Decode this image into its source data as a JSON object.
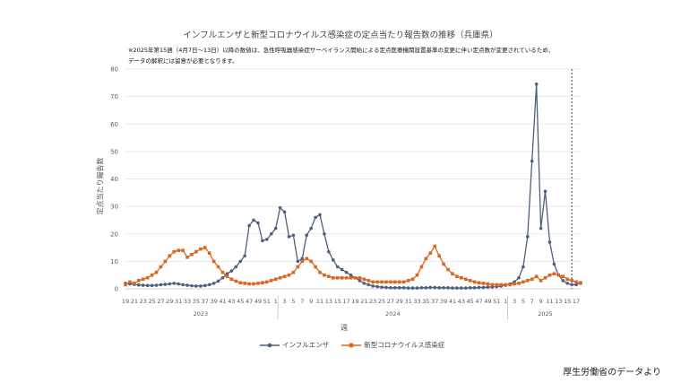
{
  "title": "インフルエンザと新型コロナウイルス感染症の定点当たり報告数の推移（兵庫県）",
  "note_line1": "※2025年第15週（4月7日～13日）以降の数値は、急性呼吸器感染症サーベイランス開始による定点医療機関設置基準の変更に伴い定点数が変更されているため、",
  "note_line2": "データの解釈には留意が必要となります。",
  "credit": "厚生労働省のデータより",
  "colors": {
    "influenza": "#4c5f7f",
    "covid": "#d9671f",
    "grid": "#e3e3e3",
    "axis": "#bfbfbf",
    "text": "#595959"
  },
  "chart_data": {
    "type": "line",
    "title": "インフルエンザと新型コロナウイルス感染症の定点当たり報告数の推移（兵庫県）",
    "xlabel": "週",
    "ylabel": "定点当たり報告数",
    "ylim": [
      0,
      80
    ],
    "yticks": [
      0,
      10,
      20,
      30,
      40,
      50,
      60,
      70,
      80
    ],
    "grid": true,
    "legend_position": "bottom",
    "x_start": "2023年 第19週",
    "year_labels": [
      {
        "label": "2023",
        "from_index": 0,
        "to_index": 34
      },
      {
        "label": "2024",
        "from_index": 35,
        "to_index": 86
      },
      {
        "label": "2025",
        "from_index": 87,
        "to_index": 103
      }
    ],
    "x_tick_labels": [
      "19",
      "21",
      "23",
      "25",
      "27",
      "29",
      "31",
      "33",
      "35",
      "37",
      "39",
      "41",
      "43",
      "45",
      "47",
      "49",
      "51",
      "1",
      "3",
      "5",
      "7",
      "9",
      "11",
      "13",
      "15",
      "17",
      "19",
      "21",
      "23",
      "25",
      "27",
      "29",
      "31",
      "33",
      "35",
      "37",
      "39",
      "41",
      "43",
      "45",
      "47",
      "49",
      "51",
      "1",
      "3",
      "5",
      "7",
      "9",
      "11",
      "13",
      "15",
      "17"
    ],
    "annotation": "2025年第15週 区切り線",
    "marker_line_index": 101,
    "series": [
      {
        "name": "インフルエンザ",
        "marker": "circle",
        "values": [
          2.0,
          1.8,
          1.6,
          1.4,
          1.3,
          1.2,
          1.2,
          1.3,
          1.5,
          1.6,
          1.8,
          2.0,
          1.8,
          1.5,
          1.3,
          1.1,
          1.0,
          1.0,
          1.2,
          1.5,
          2.0,
          2.8,
          4.0,
          5.5,
          6.5,
          8.0,
          10.0,
          12.0,
          23.0,
          25.0,
          24.0,
          17.5,
          18.0,
          20.0,
          22.0,
          29.5,
          28.0,
          19.0,
          19.5,
          10.0,
          11.0,
          19.5,
          22.0,
          26.0,
          27.0,
          20.0,
          13.5,
          10.5,
          8.0,
          7.0,
          6.0,
          5.0,
          4.0,
          3.0,
          2.0,
          1.5,
          1.0,
          0.8,
          0.6,
          0.5,
          0.4,
          0.4,
          0.4,
          0.4,
          0.3,
          0.3,
          0.3,
          0.4,
          0.4,
          0.5,
          0.5,
          0.4,
          0.4,
          0.4,
          0.3,
          0.3,
          0.3,
          0.3,
          0.4,
          0.4,
          0.5,
          0.5,
          0.6,
          0.7,
          0.8,
          1.0,
          1.3,
          1.8,
          2.5,
          4.0,
          8.0,
          19.0,
          46.5,
          74.5,
          22.0,
          35.5,
          17.0,
          9.0,
          5.0,
          3.0,
          2.0,
          1.5,
          1.5,
          2.0
        ]
      },
      {
        "name": "新型コロナウイルス感染症",
        "marker": "square",
        "values": [
          1.5,
          2.5,
          2.0,
          3.0,
          3.5,
          4.0,
          5.0,
          6.0,
          8.0,
          10.0,
          12.0,
          13.5,
          14.0,
          14.0,
          11.5,
          12.5,
          13.5,
          14.5,
          15.0,
          13.0,
          10.0,
          8.0,
          6.0,
          4.5,
          3.5,
          2.8,
          2.2,
          2.0,
          1.8,
          1.8,
          2.0,
          2.2,
          2.5,
          3.0,
          3.5,
          4.0,
          4.5,
          5.0,
          6.0,
          8.0,
          10.0,
          11.0,
          10.0,
          8.0,
          6.0,
          5.0,
          4.5,
          4.0,
          4.0,
          4.0,
          4.0,
          4.0,
          4.0,
          4.0,
          3.5,
          3.0,
          2.5,
          2.5,
          2.5,
          2.5,
          2.5,
          2.5,
          2.5,
          2.5,
          3.0,
          3.5,
          5.0,
          8.0,
          11.0,
          13.0,
          15.5,
          12.0,
          9.0,
          7.0,
          5.5,
          4.5,
          4.0,
          3.5,
          3.0,
          2.5,
          2.2,
          2.0,
          1.8,
          1.5,
          1.5,
          1.5,
          1.5,
          1.5,
          1.8,
          2.0,
          2.5,
          3.0,
          3.5,
          4.5,
          3.0,
          4.0,
          5.0,
          5.5,
          5.0,
          4.5,
          3.5,
          3.0,
          2.5,
          2.2
        ]
      }
    ]
  }
}
